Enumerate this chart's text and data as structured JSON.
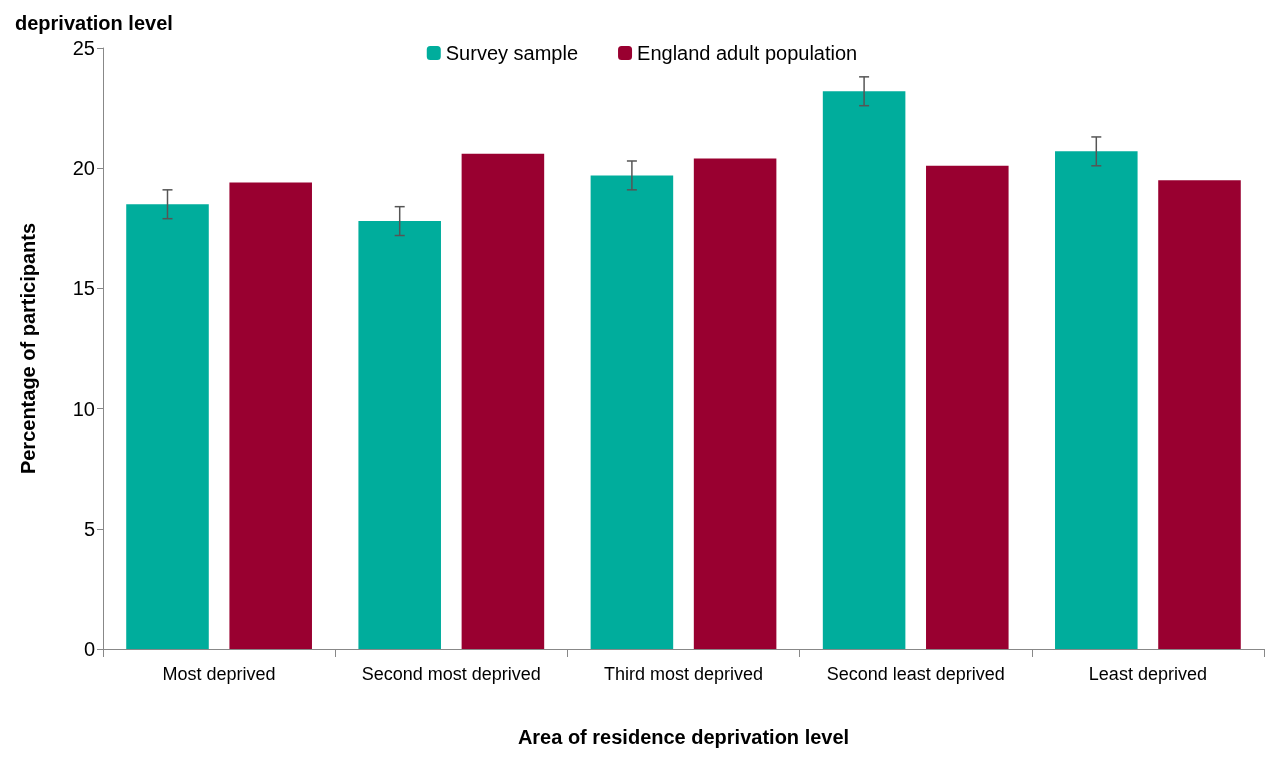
{
  "chart_data": {
    "type": "bar",
    "title": "deprivation level",
    "xlabel": "Area of residence deprivation level",
    "ylabel": "Percentage of participants",
    "categories": [
      "Most deprived",
      "Second most deprived",
      "Third most deprived",
      "Second least deprived",
      "Least deprived"
    ],
    "series": [
      {
        "name": "Survey sample",
        "color": "#00ad9c",
        "values": [
          18.5,
          17.8,
          19.7,
          23.2,
          20.7
        ],
        "errors": [
          0.6,
          0.6,
          0.6,
          0.6,
          0.6
        ]
      },
      {
        "name": "England adult population",
        "color": "#990030",
        "values": [
          19.4,
          20.6,
          20.4,
          20.1,
          19.5
        ]
      }
    ],
    "ylim": [
      0,
      25
    ],
    "yticks": [
      0,
      5,
      10,
      15,
      20,
      25
    ],
    "grid": false,
    "legend": "top"
  }
}
